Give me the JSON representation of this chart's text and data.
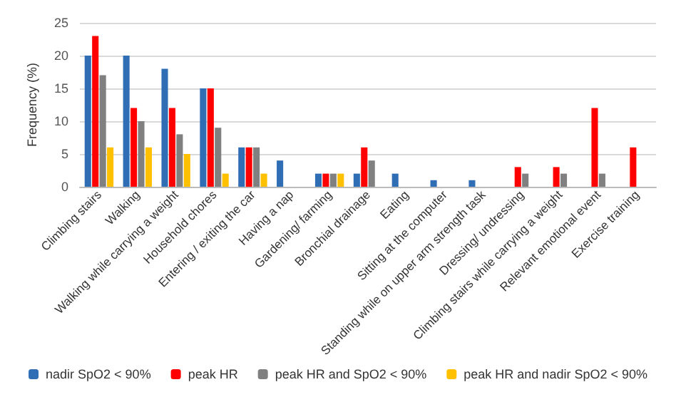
{
  "chart_data": {
    "type": "bar",
    "ylabel": "Frequency (%)",
    "categories": [
      "Climbing stairs",
      "Walking",
      "Walking while carrying a weight",
      "Household chores",
      "Entering / exiting the car",
      "Having a nap",
      "Gardening/ farming",
      "Bronchial drainage",
      "Eating",
      "Sitting at the computer",
      "Standing while on upper arm strength task",
      "Dressing/ undressing",
      "Climbing stairs while carrying a weight",
      "Relevant emotional event",
      "Exercise training"
    ],
    "series": [
      {
        "name": "nadir SpO2 < 90%",
        "color": "#2f6db5",
        "values": [
          20,
          20,
          18,
          15,
          6,
          4,
          2,
          2,
          2,
          1,
          1,
          null,
          null,
          null,
          null
        ]
      },
      {
        "name": "peak HR",
        "color": "#ff0000",
        "values": [
          23,
          12,
          12,
          15,
          6,
          null,
          2,
          6,
          null,
          null,
          null,
          3,
          3,
          12,
          6
        ]
      },
      {
        "name": "peak HR and SpO2 < 90%",
        "color": "#808080",
        "values": [
          17,
          10,
          8,
          9,
          6,
          null,
          2,
          4,
          null,
          null,
          null,
          2,
          2,
          2,
          null
        ]
      },
      {
        "name": "peak HR and nadir SpO2 < 90%",
        "color": "#ffc000",
        "values": [
          6,
          6,
          5,
          2,
          2,
          null,
          2,
          null,
          null,
          null,
          null,
          null,
          null,
          null,
          null
        ]
      }
    ],
    "ylim": [
      0,
      25
    ],
    "yticks": [
      0,
      5,
      10,
      15,
      20,
      25
    ],
    "grid": "y",
    "legend": "bottom"
  }
}
